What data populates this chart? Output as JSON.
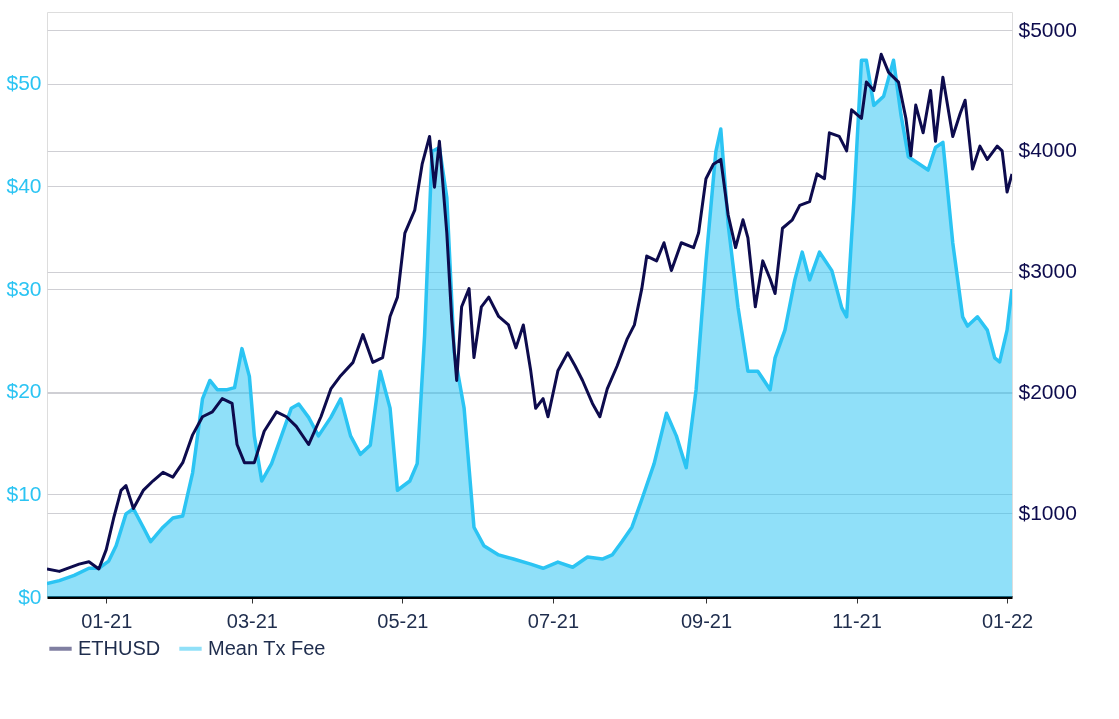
{
  "chart_data": {
    "type": "line",
    "xlim": [
      "2020-12-08",
      "2022-01-03"
    ],
    "xticks": [
      {
        "value": "2021-01-01",
        "label": "01-21"
      },
      {
        "value": "2021-03-01",
        "label": "03-21"
      },
      {
        "value": "2021-05-01",
        "label": "05-21"
      },
      {
        "value": "2021-07-01",
        "label": "07-21"
      },
      {
        "value": "2021-09-01",
        "label": "09-21"
      },
      {
        "value": "2021-11-01",
        "label": "11-21"
      },
      {
        "value": "2022-01-01",
        "label": "01-22"
      }
    ],
    "ylim": [
      0,
      57
    ],
    "yticks": [
      {
        "value": 0,
        "label": "$0"
      },
      {
        "value": 10,
        "label": "$10"
      },
      {
        "value": 20,
        "label": "$20"
      },
      {
        "value": 30,
        "label": "$30"
      },
      {
        "value": 40,
        "label": "$40"
      },
      {
        "value": 50,
        "label": "$50"
      }
    ],
    "y2lim": [
      308,
      5150
    ],
    "y2ticks": [
      {
        "value": 1000,
        "label": "$1000"
      },
      {
        "value": 2000,
        "label": "$2000"
      },
      {
        "value": 3000,
        "label": "$3000"
      },
      {
        "value": 4000,
        "label": "$4000"
      },
      {
        "value": 5000,
        "label": "$5000"
      }
    ],
    "grid": "y",
    "legend": "bottom",
    "series": [
      {
        "name": "ETHUSD",
        "color": "#0d0b4d",
        "axis": "y2",
        "x": [
          "2020-12-08",
          "2020-12-13",
          "2020-12-21",
          "2020-12-25",
          "2020-12-29",
          "2021-01-01",
          "2021-01-04",
          "2021-01-07",
          "2021-01-09",
          "2021-01-12",
          "2021-01-16",
          "2021-01-20",
          "2021-01-24",
          "2021-01-28",
          "2021-02-01",
          "2021-02-05",
          "2021-02-09",
          "2021-02-13",
          "2021-02-17",
          "2021-02-21",
          "2021-02-23",
          "2021-02-26",
          "2021-03-02",
          "2021-03-06",
          "2021-03-11",
          "2021-03-15",
          "2021-03-19",
          "2021-03-24",
          "2021-03-29",
          "2021-04-02",
          "2021-04-06",
          "2021-04-11",
          "2021-04-15",
          "2021-04-19",
          "2021-04-23",
          "2021-04-26",
          "2021-04-29",
          "2021-05-02",
          "2021-05-06",
          "2021-05-09",
          "2021-05-12",
          "2021-05-14",
          "2021-05-16",
          "2021-05-19",
          "2021-05-21",
          "2021-05-23",
          "2021-05-25",
          "2021-05-28",
          "2021-05-30",
          "2021-06-02",
          "2021-06-05",
          "2021-06-09",
          "2021-06-13",
          "2021-06-16",
          "2021-06-19",
          "2021-06-22",
          "2021-06-24",
          "2021-06-27",
          "2021-06-29",
          "2021-07-03",
          "2021-07-07",
          "2021-07-10",
          "2021-07-13",
          "2021-07-17",
          "2021-07-20",
          "2021-07-23",
          "2021-07-27",
          "2021-07-31",
          "2021-08-03",
          "2021-08-06",
          "2021-08-08",
          "2021-08-12",
          "2021-08-15",
          "2021-08-18",
          "2021-08-22",
          "2021-08-27",
          "2021-08-29",
          "2021-09-01",
          "2021-09-04",
          "2021-09-07",
          "2021-09-10",
          "2021-09-13",
          "2021-09-16",
          "2021-09-18",
          "2021-09-21",
          "2021-09-24",
          "2021-09-27",
          "2021-09-29",
          "2021-10-02",
          "2021-10-06",
          "2021-10-09",
          "2021-10-13",
          "2021-10-16",
          "2021-10-19",
          "2021-10-21",
          "2021-10-25",
          "2021-10-28",
          "2021-10-30",
          "2021-11-03",
          "2021-11-05",
          "2021-11-08",
          "2021-11-11",
          "2021-11-14",
          "2021-11-18",
          "2021-11-21",
          "2021-11-23",
          "2021-11-25",
          "2021-11-28",
          "2021-12-01",
          "2021-12-03",
          "2021-12-06",
          "2021-12-10",
          "2021-12-13",
          "2021-12-15",
          "2021-12-18",
          "2021-12-21",
          "2021-12-24",
          "2021-12-28",
          "2021-12-30",
          "2022-01-01",
          "2022-01-03"
        ],
        "values": [
          540,
          520,
          580,
          600,
          540,
          700,
          960,
          1190,
          1230,
          1040,
          1190,
          1270,
          1340,
          1300,
          1420,
          1650,
          1800,
          1840,
          1950,
          1910,
          1570,
          1420,
          1420,
          1680,
          1840,
          1800,
          1720,
          1570,
          1800,
          2030,
          2140,
          2250,
          2480,
          2250,
          2290,
          2630,
          2790,
          3320,
          3510,
          3890,
          4120,
          3700,
          4080,
          3320,
          2600,
          2100,
          2710,
          2860,
          2290,
          2710,
          2790,
          2630,
          2560,
          2370,
          2560,
          2180,
          1870,
          1950,
          1800,
          2180,
          2330,
          2220,
          2100,
          1910,
          1800,
          2030,
          2220,
          2440,
          2560,
          2860,
          3130,
          3090,
          3240,
          3010,
          3240,
          3200,
          3320,
          3770,
          3890,
          3930,
          3470,
          3200,
          3430,
          3280,
          2710,
          3090,
          2940,
          2820,
          3360,
          3430,
          3550,
          3580,
          3810,
          3770,
          4150,
          4120,
          4000,
          4340,
          4270,
          4570,
          4500,
          4800,
          4650,
          4570,
          4270,
          3960,
          4380,
          4150,
          4500,
          4080,
          4610,
          4120,
          4310,
          4420,
          3850,
          4040,
          3930,
          4040,
          4000,
          3660,
          3810
        ]
      },
      {
        "name": "Mean Tx Fee",
        "color": "#2bc4f3",
        "type": "area",
        "x": [
          "2020-12-08",
          "2020-12-13",
          "2020-12-19",
          "2020-12-25",
          "2020-12-29",
          "2021-01-02",
          "2021-01-05",
          "2021-01-09",
          "2021-01-12",
          "2021-01-16",
          "2021-01-19",
          "2021-01-24",
          "2021-01-28",
          "2021-02-01",
          "2021-02-05",
          "2021-02-09",
          "2021-02-12",
          "2021-02-15",
          "2021-02-19",
          "2021-02-22",
          "2021-02-25",
          "2021-02-28",
          "2021-03-02",
          "2021-03-05",
          "2021-03-09",
          "2021-03-13",
          "2021-03-17",
          "2021-03-20",
          "2021-03-24",
          "2021-03-28",
          "2021-04-02",
          "2021-04-06",
          "2021-04-10",
          "2021-04-14",
          "2021-04-18",
          "2021-04-22",
          "2021-04-26",
          "2021-04-29",
          "2021-05-04",
          "2021-05-07",
          "2021-05-10",
          "2021-05-13",
          "2021-05-16",
          "2021-05-19",
          "2021-05-22",
          "2021-05-26",
          "2021-05-30",
          "2021-06-03",
          "2021-06-09",
          "2021-06-15",
          "2021-06-22",
          "2021-06-27",
          "2021-07-03",
          "2021-07-09",
          "2021-07-15",
          "2021-07-21",
          "2021-07-25",
          "2021-07-29",
          "2021-08-02",
          "2021-08-06",
          "2021-08-11",
          "2021-08-16",
          "2021-08-20",
          "2021-08-24",
          "2021-08-28",
          "2021-09-01",
          "2021-09-05",
          "2021-09-07",
          "2021-09-10",
          "2021-09-14",
          "2021-09-18",
          "2021-09-22",
          "2021-09-27",
          "2021-09-29",
          "2021-10-03",
          "2021-10-07",
          "2021-10-10",
          "2021-10-13",
          "2021-10-17",
          "2021-10-22",
          "2021-10-26",
          "2021-10-28",
          "2021-10-31",
          "2021-11-03",
          "2021-11-05",
          "2021-11-08",
          "2021-11-12",
          "2021-11-16",
          "2021-11-19",
          "2021-11-22",
          "2021-11-27",
          "2021-11-30",
          "2021-12-03",
          "2021-12-06",
          "2021-12-10",
          "2021-12-14",
          "2021-12-16",
          "2021-12-20",
          "2021-12-24",
          "2021-12-27",
          "2021-12-29",
          "2022-01-01",
          "2022-01-03"
        ],
        "values": [
          1.3,
          1.6,
          2.1,
          2.8,
          2.8,
          3.5,
          5.0,
          8.1,
          8.6,
          6.8,
          5.4,
          6.8,
          7.7,
          7.9,
          12.1,
          19.3,
          21.1,
          20.2,
          20.2,
          20.4,
          24.2,
          21.5,
          15.7,
          11.3,
          13.0,
          15.7,
          18.4,
          18.8,
          17.5,
          15.7,
          17.5,
          19.3,
          15.7,
          13.9,
          14.8,
          22.0,
          18.4,
          10.4,
          11.3,
          13.0,
          25.5,
          43.4,
          43.8,
          38.9,
          23.8,
          18.4,
          6.8,
          5.0,
          4.1,
          3.7,
          3.2,
          2.8,
          3.4,
          2.9,
          3.9,
          3.7,
          4.1,
          5.4,
          6.8,
          9.5,
          13.0,
          17.9,
          15.7,
          12.6,
          20.2,
          32.7,
          43.4,
          45.6,
          36.3,
          28.2,
          22.0,
          22.0,
          20.2,
          23.3,
          26.0,
          30.9,
          33.6,
          30.9,
          33.6,
          31.8,
          28.2,
          27.3,
          38.9,
          52.3,
          52.3,
          47.9,
          48.8,
          52.3,
          47.0,
          42.9,
          42.1,
          41.6,
          43.8,
          44.3,
          34.5,
          27.3,
          26.4,
          27.3,
          26.0,
          23.3,
          22.9,
          26.0,
          30.0
        ]
      }
    ]
  }
}
